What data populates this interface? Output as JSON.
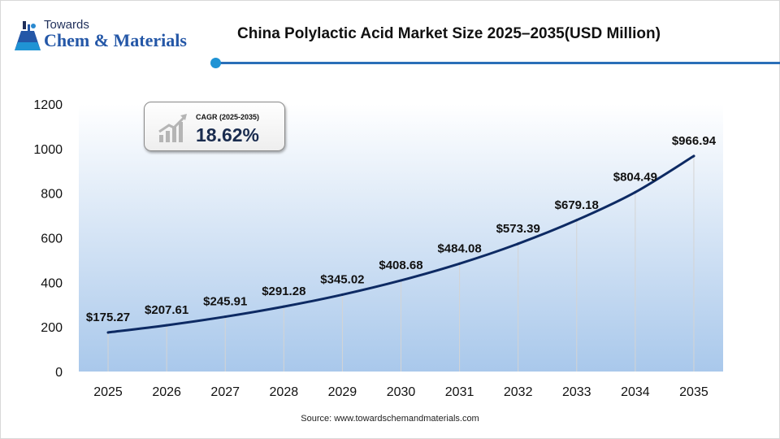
{
  "logo": {
    "small_text": "Towards",
    "big_text": "Chem & Materials"
  },
  "header": {
    "title": "China Polylactic Acid Market Size 2025–2035(USD Million)"
  },
  "cagr": {
    "label": "CAGR (2025-2035)",
    "value": "18.62%"
  },
  "source": "Source: www.towardschemandmaterials.com",
  "colors": {
    "line": "#0d2a63",
    "title_rule": "#2a6fb8",
    "plot_gradient_top": "#ffffff",
    "plot_gradient_bottom": "#a9c8eb"
  },
  "chart_data": {
    "type": "line",
    "categories": [
      "2025",
      "2026",
      "2027",
      "2028",
      "2029",
      "2030",
      "2031",
      "2032",
      "2033",
      "2034",
      "2035"
    ],
    "values": [
      175.27,
      207.61,
      245.91,
      291.28,
      345.02,
      408.68,
      484.08,
      573.39,
      679.18,
      804.49,
      966.94
    ],
    "value_labels": [
      "$175.27",
      "$207.61",
      "$245.91",
      "$291.28",
      "$345.02",
      "$408.68",
      "$484.08",
      "$573.39",
      "$679.18",
      "$804.49",
      "$966.94"
    ],
    "yticks": [
      0,
      200,
      400,
      600,
      800,
      1000,
      1200
    ],
    "ylim": [
      0,
      1200
    ],
    "title": "China Polylactic Acid Market Size 2025–2035(USD Million)",
    "xlabel": "",
    "ylabel": "",
    "grid": false,
    "area_fill": true
  }
}
